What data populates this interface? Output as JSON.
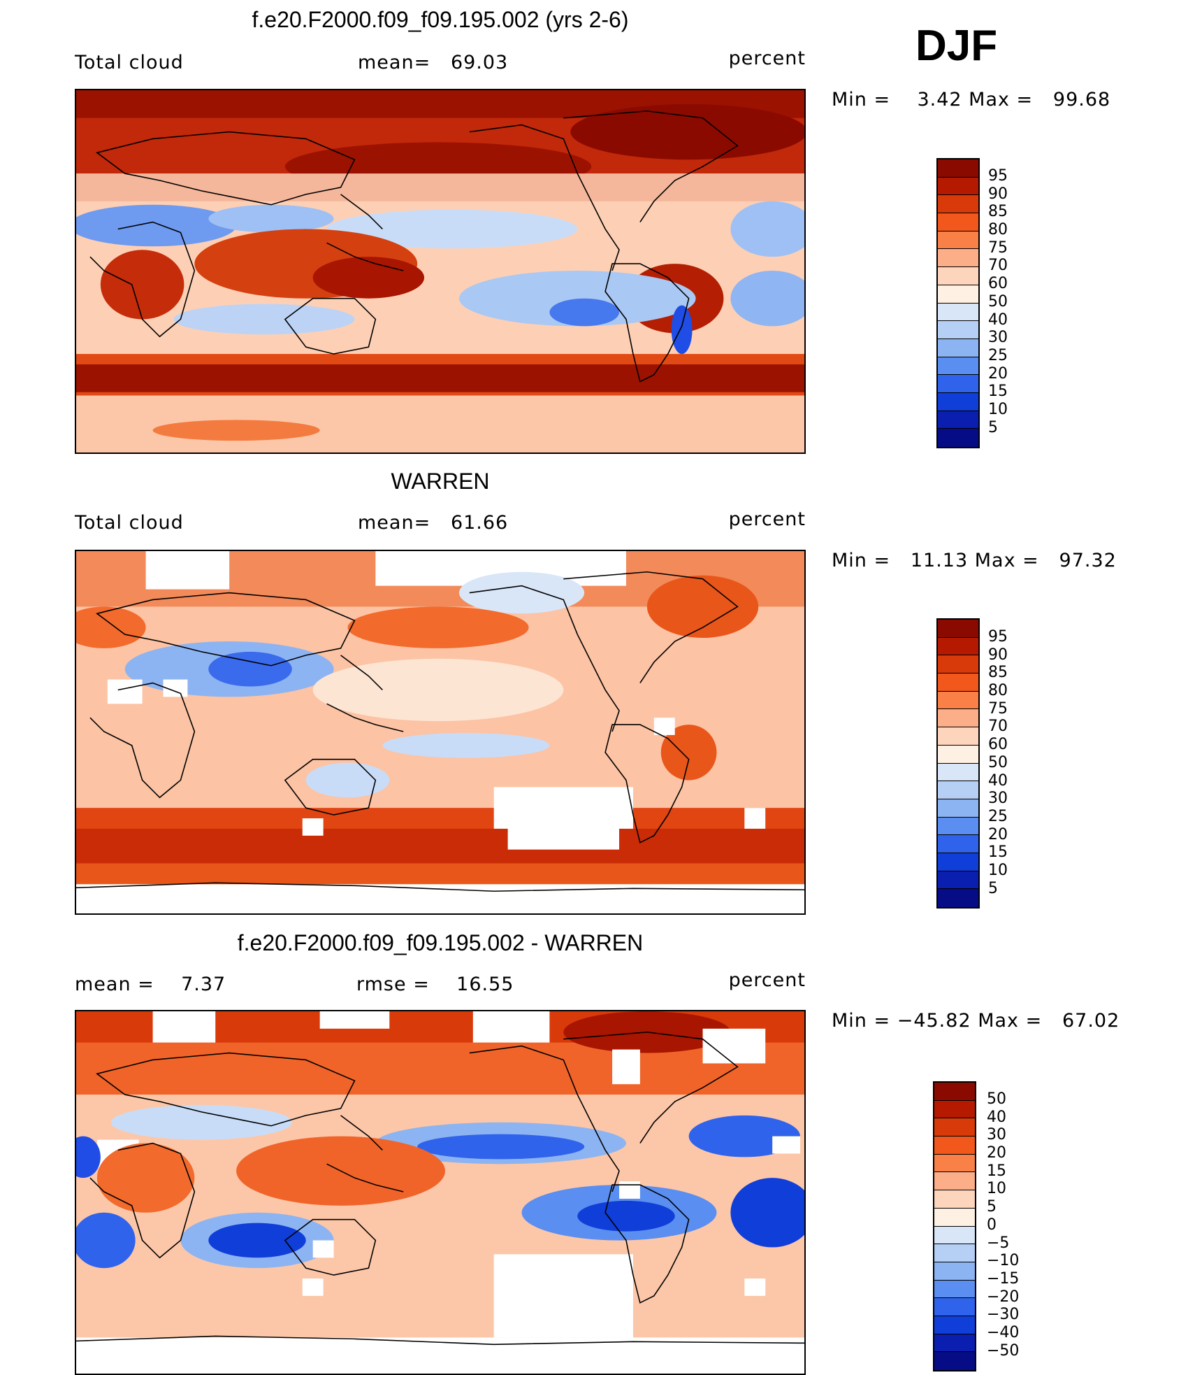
{
  "season": "DJF",
  "panels": [
    {
      "title": "f.e20.F2000.f09_f09.195.002 (yrs 2-6)",
      "left_label": "Total cloud",
      "mid_label": "mean=   69.03",
      "right_label": "percent",
      "minmax": "Min =    3.42 Max =   99.68",
      "colorbar": {
        "labels": [
          "95",
          "90",
          "85",
          "80",
          "75",
          "70",
          "60",
          "50",
          "40",
          "30",
          "25",
          "20",
          "15",
          "10",
          "5"
        ],
        "colors": [
          "#8b0a00",
          "#b51a00",
          "#d83a0a",
          "#f2571c",
          "#f98046",
          "#fcae88",
          "#fdd5bd",
          "#fef0e2",
          "#d8e6f8",
          "#b6d0f5",
          "#8db4f2",
          "#5a8ef0",
          "#2f63ec",
          "#103ed8",
          "#0a1fb0",
          "#050c86"
        ]
      }
    },
    {
      "title": "WARREN",
      "left_label": "Total cloud",
      "mid_label": "mean=   61.66",
      "right_label": "percent",
      "minmax": "Min =   11.13 Max =   97.32",
      "colorbar": {
        "labels": [
          "95",
          "90",
          "85",
          "80",
          "75",
          "70",
          "60",
          "50",
          "40",
          "30",
          "25",
          "20",
          "15",
          "10",
          "5"
        ],
        "colors": [
          "#8b0a00",
          "#b51a00",
          "#d83a0a",
          "#f2571c",
          "#f98046",
          "#fcae88",
          "#fdd5bd",
          "#fef0e2",
          "#d8e6f8",
          "#b6d0f5",
          "#8db4f2",
          "#5a8ef0",
          "#2f63ec",
          "#103ed8",
          "#0a1fb0",
          "#050c86"
        ]
      }
    },
    {
      "title": "f.e20.F2000.f09_f09.195.002 - WARREN",
      "left_label": "mean =    7.37",
      "mid_label": "rmse =    16.55",
      "right_label": "percent",
      "minmax": "Min = −45.82 Max =   67.02",
      "colorbar": {
        "labels": [
          "50",
          "40",
          "30",
          "20",
          "15",
          "10",
          "5",
          "0",
          "−5",
          "−10",
          "−15",
          "−20",
          "−30",
          "−40",
          "−50"
        ],
        "colors": [
          "#8b0a00",
          "#b51a00",
          "#d83a0a",
          "#f2571c",
          "#f98046",
          "#fcae88",
          "#fdd5bd",
          "#fef0e2",
          "#d8e6f8",
          "#b6d0f5",
          "#8db4f2",
          "#5a8ef0",
          "#2f63ec",
          "#103ed8",
          "#0a1fb0",
          "#050c86"
        ]
      }
    }
  ]
}
